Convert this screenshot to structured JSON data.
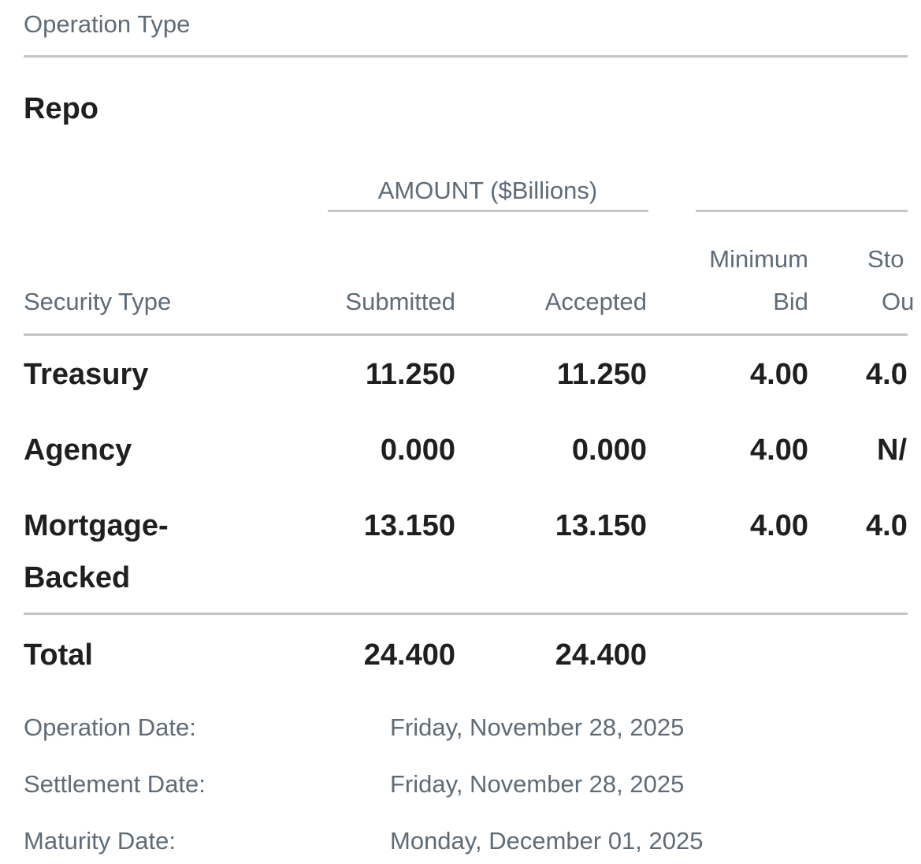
{
  "header": {
    "title": "Operation Type"
  },
  "operation": "Repo",
  "table": {
    "group_header": "AMOUNT ($Billions)",
    "columns": [
      "Security Type",
      "Submitted",
      "Accepted",
      "Minimum Bid"
    ],
    "cut_column": [
      "Sto",
      "Ou"
    ],
    "rows": [
      [
        "Treasury",
        "11.250",
        "11.250",
        "4.00",
        "4.0"
      ],
      [
        "Agency",
        "0.000",
        "0.000",
        "4.00",
        "N/"
      ],
      [
        "Mortgage-Backed",
        "13.150",
        "13.150",
        "4.00",
        "4.0"
      ]
    ],
    "total": [
      "Total",
      "24.400",
      "24.400"
    ]
  },
  "details": [
    {
      "label": "Operation Date:",
      "value": "Friday, November 28, 2025"
    },
    {
      "label": "Settlement Date:",
      "value": "Friday, November 28, 2025"
    },
    {
      "label": "Maturity Date:",
      "value": "Monday, December 01, 2025"
    }
  ]
}
